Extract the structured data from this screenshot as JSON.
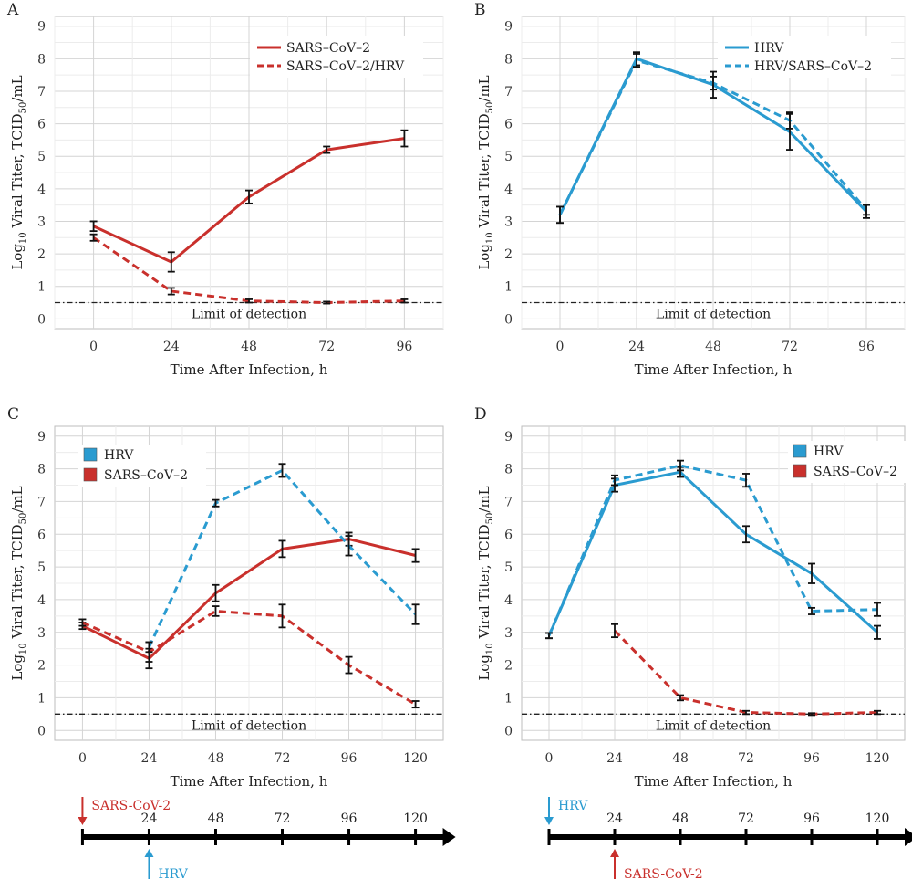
{
  "colors": {
    "red": "#c9302c",
    "blue": "#2a9bd0",
    "black": "#111111",
    "grid": "#dcdcdc"
  },
  "chart_data": [
    {
      "panel": "A",
      "type": "line",
      "x": [
        0,
        24,
        48,
        72,
        96
      ],
      "xticks": [
        "0",
        "24",
        "48",
        "72",
        "96"
      ],
      "xlim": [
        -12,
        108
      ],
      "ylim": [
        -0.3,
        9.3
      ],
      "yticks": [
        0,
        1,
        2,
        3,
        4,
        5,
        6,
        7,
        8,
        9
      ],
      "xlabel": "Time After Infection, h",
      "ylabel_main": "Log",
      "ylabel_sub": "10",
      "ylabel_mid": " Viral Titer, TCID",
      "ylabel_sub2": "50",
      "ylabel_end": "/mL",
      "lod": 0.5,
      "lod_label": "Limit of detection",
      "legend_style": "line",
      "series": [
        {
          "name": "SARS–CoV–2",
          "color": "red",
          "dash": false,
          "values": [
            2.85,
            1.75,
            3.75,
            5.2,
            5.55
          ],
          "err": [
            0.15,
            0.3,
            0.2,
            0.1,
            0.25
          ]
        },
        {
          "name": "SARS–CoV–2/HRV",
          "color": "red",
          "dash": true,
          "values": [
            2.5,
            0.85,
            0.55,
            0.5,
            0.55
          ],
          "err": [
            0.1,
            0.1,
            0.05,
            0.03,
            0.05
          ]
        }
      ]
    },
    {
      "panel": "B",
      "type": "line",
      "x": [
        0,
        24,
        48,
        72,
        96
      ],
      "xticks": [
        "0",
        "24",
        "48",
        "72",
        "96"
      ],
      "xlim": [
        -12,
        108
      ],
      "ylim": [
        -0.3,
        9.3
      ],
      "yticks": [
        0,
        1,
        2,
        3,
        4,
        5,
        6,
        7,
        8,
        9
      ],
      "xlabel": "Time After Infection, h",
      "ylabel_main": "Log",
      "ylabel_sub": "10",
      "ylabel_mid": " Viral Titer, TCID",
      "ylabel_sub2": "50",
      "ylabel_end": "/mL",
      "lod": 0.5,
      "lod_label": "Limit of detection",
      "legend_style": "line",
      "series": [
        {
          "name": "HRV",
          "color": "blue",
          "dash": false,
          "values": [
            3.2,
            8.0,
            7.2,
            5.75,
            3.3
          ],
          "err": [
            0.25,
            0.2,
            0.4,
            0.55,
            0.2
          ]
        },
        {
          "name": "HRV/SARS–CoV–2",
          "color": "blue",
          "dash": true,
          "values": [
            3.2,
            7.95,
            7.25,
            6.1,
            3.35
          ],
          "err": [
            0.25,
            0.2,
            0.2,
            0.25,
            0.15
          ]
        }
      ]
    },
    {
      "panel": "C",
      "type": "line",
      "x": [
        0,
        24,
        48,
        72,
        96,
        120
      ],
      "xticks": [
        "0",
        "24",
        "48",
        "72",
        "96",
        "120"
      ],
      "xlim": [
        -10,
        130
      ],
      "ylim": [
        -0.3,
        9.3
      ],
      "yticks": [
        0,
        1,
        2,
        3,
        4,
        5,
        6,
        7,
        8,
        9
      ],
      "xlabel": "Time After Infection, h",
      "ylabel_main": "Log",
      "ylabel_sub": "10",
      "ylabel_mid": " Viral Titer, TCID",
      "ylabel_sub2": "50",
      "ylabel_end": "/mL",
      "lod": 0.5,
      "lod_label": "Limit of detection",
      "legend_style": "box",
      "legend": [
        {
          "name": "HRV",
          "color": "blue"
        },
        {
          "name": "SARS–CoV–2",
          "color": "red"
        }
      ],
      "series": [
        {
          "name": "SARS-CoV-2 solid",
          "color": "red",
          "dash": false,
          "values": [
            3.2,
            2.2,
            4.2,
            5.55,
            5.85,
            5.35
          ],
          "err": [
            0.1,
            0.3,
            0.25,
            0.25,
            0.2,
            0.2
          ]
        },
        {
          "name": "SARS-CoV-2 dashed",
          "color": "red",
          "dash": true,
          "values": [
            3.3,
            2.4,
            3.65,
            3.5,
            2.0,
            0.8
          ],
          "err": [
            0.1,
            0.3,
            0.15,
            0.35,
            0.25,
            0.1
          ]
        },
        {
          "name": "HRV dashed",
          "color": "blue",
          "dash": true,
          "x": [
            24,
            48,
            72,
            96,
            120
          ],
          "values": [
            2.55,
            6.95,
            7.95,
            5.65,
            3.55
          ],
          "err": [
            0.15,
            0.1,
            0.2,
            0.3,
            0.3
          ]
        }
      ],
      "timeline": {
        "ticks": [
          "24",
          "48",
          "72",
          "96",
          "120"
        ],
        "top_label": "SARS-CoV-2",
        "top_color": "red",
        "top_x": 0,
        "bottom_label": "HRV",
        "bottom_color": "blue",
        "bottom_x": 24
      }
    },
    {
      "panel": "D",
      "type": "line",
      "x": [
        0,
        24,
        48,
        72,
        96,
        120
      ],
      "xticks": [
        "0",
        "24",
        "48",
        "72",
        "96",
        "120"
      ],
      "xlim": [
        -10,
        130
      ],
      "ylim": [
        -0.3,
        9.3
      ],
      "yticks": [
        0,
        1,
        2,
        3,
        4,
        5,
        6,
        7,
        8,
        9
      ],
      "xlabel": "Time After Infection, h",
      "ylabel_main": "Log",
      "ylabel_sub": "10",
      "ylabel_mid": " Viral Titer, TCID",
      "ylabel_sub2": "50",
      "ylabel_end": "/mL",
      "lod": 0.5,
      "lod_label": "Limit of detection",
      "legend_style": "box",
      "legend": [
        {
          "name": "HRV",
          "color": "blue"
        },
        {
          "name": "SARS–CoV–2",
          "color": "red"
        }
      ],
      "series": [
        {
          "name": "HRV solid",
          "color": "blue",
          "dash": false,
          "values": [
            2.9,
            7.5,
            7.9,
            6.0,
            4.8,
            3.0
          ],
          "err": [
            0.08,
            0.2,
            0.15,
            0.25,
            0.3,
            0.2
          ]
        },
        {
          "name": "HRV dashed",
          "color": "blue",
          "dash": true,
          "values": [
            2.9,
            7.65,
            8.1,
            7.65,
            3.65,
            3.7
          ],
          "err": [
            0.08,
            0.15,
            0.15,
            0.2,
            0.1,
            0.2
          ]
        },
        {
          "name": "SARS-CoV-2 dashed",
          "color": "red",
          "dash": true,
          "x": [
            24,
            48,
            72,
            96,
            120
          ],
          "values": [
            3.05,
            1.0,
            0.55,
            0.5,
            0.55
          ],
          "err": [
            0.2,
            0.08,
            0.05,
            0.03,
            0.05
          ]
        }
      ],
      "timeline": {
        "ticks": [
          "24",
          "48",
          "72",
          "96",
          "120"
        ],
        "top_label": "HRV",
        "top_color": "blue",
        "top_x": 0,
        "bottom_label": "SARS-CoV-2",
        "bottom_color": "red",
        "bottom_x": 24
      }
    }
  ]
}
